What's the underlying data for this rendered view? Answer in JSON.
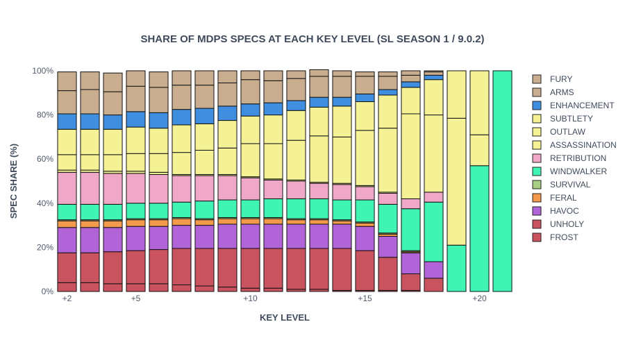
{
  "chart_data": {
    "type": "bar",
    "stacked": true,
    "title": "SHARE OF MDPS SPECS AT EACH KEY LEVEL (SL SEASON 1 / 9.0.2)",
    "xlabel": "KEY LEVEL",
    "ylabel": "SPEC SHARE (%)",
    "ylim": [
      0,
      100
    ],
    "y_ticks": [
      "0%",
      "20%",
      "40%",
      "60%",
      "80%",
      "100%"
    ],
    "x_ticks": [
      {
        "at": 2,
        "label": "+2"
      },
      {
        "at": 5,
        "label": "+5"
      },
      {
        "at": 10,
        "label": "+10"
      },
      {
        "at": 15,
        "label": "+15"
      },
      {
        "at": 20,
        "label": "+20"
      }
    ],
    "legend_position": "right",
    "grid": false,
    "x": [
      2,
      3,
      4,
      5,
      6,
      7,
      8,
      9,
      10,
      11,
      12,
      13,
      14,
      15,
      16,
      17,
      18,
      19,
      20,
      21
    ],
    "series": [
      {
        "name": "FROST",
        "color": "#c9545f",
        "values": [
          4,
          4,
          3.5,
          3.5,
          3.5,
          3,
          2.5,
          2,
          1.5,
          1.5,
          1,
          1,
          0.5,
          0.5,
          0.5,
          0.5,
          0,
          0,
          0,
          0
        ]
      },
      {
        "name": "UNHOLY",
        "color": "#c9545f",
        "values": [
          13.5,
          13.5,
          14.5,
          15,
          15.5,
          16.5,
          17,
          17.5,
          18,
          18,
          18.5,
          18.5,
          19,
          18,
          15,
          7.5,
          6,
          0,
          0,
          0
        ]
      },
      {
        "name": "HAVOC",
        "color": "#b064d8",
        "values": [
          11.5,
          11.5,
          11,
          11,
          10.5,
          10.5,
          10.5,
          11,
          11,
          11,
          11,
          11,
          11,
          11,
          9.5,
          9.5,
          7.5,
          0,
          0,
          0
        ]
      },
      {
        "name": "FERAL",
        "color": "#f49a4c",
        "values": [
          3,
          3,
          3,
          3,
          3,
          3,
          2.5,
          2.5,
          2.5,
          2.5,
          2,
          2,
          1.5,
          1.5,
          1,
          0.5,
          0,
          0,
          0,
          0
        ]
      },
      {
        "name": "SURVIVAL",
        "color": "#a9cf85",
        "values": [
          0.5,
          0.5,
          0.5,
          0.5,
          0.5,
          0.5,
          0.5,
          0.5,
          0.5,
          0.5,
          0.5,
          0.5,
          0.5,
          0.5,
          0.5,
          0.5,
          0,
          0,
          0,
          0
        ]
      },
      {
        "name": "WINDWALKER",
        "color": "#40f5b4",
        "values": [
          7,
          7,
          7,
          7,
          7,
          7,
          8,
          8,
          8,
          8.5,
          9,
          9,
          9,
          10,
          13,
          19,
          27,
          21,
          57,
          100
        ]
      },
      {
        "name": "RETRIBUTION",
        "color": "#f0a8c8",
        "values": [
          14.5,
          14.5,
          14,
          13.5,
          13,
          12,
          11.5,
          11,
          10,
          8.5,
          8,
          7,
          7,
          6,
          5,
          4.5,
          4.5,
          0,
          0,
          0
        ]
      },
      {
        "name": "ASSASSINATION",
        "color": "#f4f294",
        "values": [
          1,
          1,
          1,
          1,
          1,
          0.5,
          0.5,
          0.5,
          0.5,
          0.5,
          0.5,
          0.5,
          0.5,
          0.5,
          0.5,
          0,
          0,
          0,
          0,
          0
        ]
      },
      {
        "name": "OUTLAW",
        "color": "#f4f294",
        "values": [
          7,
          7,
          7.5,
          8,
          8.5,
          10,
          11,
          12,
          15,
          16,
          18,
          21,
          21,
          25,
          29,
          38.5,
          35,
          57.5,
          14,
          0
        ]
      },
      {
        "name": "SUBTLETY",
        "color": "#f4f294",
        "values": [
          11.5,
          11.5,
          11.5,
          12,
          11.5,
          12.5,
          12,
          12.5,
          12.5,
          13,
          13.5,
          13,
          14,
          13,
          15,
          12,
          16,
          21.5,
          29,
          0
        ]
      },
      {
        "name": "ENHANCEMENT",
        "color": "#3f8ee0",
        "values": [
          7,
          7,
          6.5,
          7,
          7,
          7,
          7,
          6.5,
          5.5,
          5.5,
          4.5,
          4.5,
          4,
          3.5,
          2.5,
          2.5,
          2,
          0,
          0,
          0
        ]
      },
      {
        "name": "ARMS",
        "color": "#c9ad8f",
        "values": [
          10.5,
          11,
          10.5,
          11.5,
          11.5,
          11,
          10.5,
          10.5,
          11,
          10,
          10,
          9.5,
          9.5,
          8,
          6,
          3,
          1.5,
          0,
          0,
          0
        ]
      },
      {
        "name": "FURY",
        "color": "#c9ad8f",
        "values": [
          8.5,
          8,
          8.5,
          7,
          7,
          6.5,
          6.5,
          5.5,
          4,
          4.5,
          3.5,
          3,
          2.5,
          2,
          2,
          2,
          0.5,
          0,
          0,
          0
        ]
      }
    ]
  }
}
